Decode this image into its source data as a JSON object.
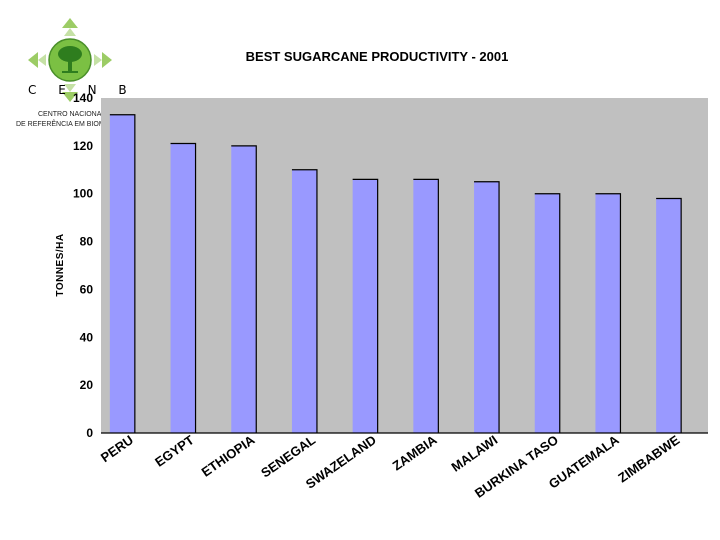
{
  "logo": {
    "name": "C E N B I O",
    "subtitle_line1": "CENTRO NACIONAL",
    "subtitle_line2": "DE REFERÊNCIA EM BIOMASSA",
    "leaf_color": "#7bc043",
    "tree_color": "#2e7d1e",
    "arrow_color": "#9ccc65"
  },
  "chart_data": {
    "type": "bar",
    "title": "BEST SUGARCANE PRODUCTIVITY - 2001",
    "xlabel": "",
    "ylabel": "TONNES/HA",
    "ylim": [
      0,
      140
    ],
    "yticks": [
      0,
      20,
      40,
      60,
      80,
      100,
      120,
      140
    ],
    "categories": [
      "PERU",
      "EGYPT",
      "ETHIOPIA",
      "SENEGAL",
      "SWAZELAND",
      "ZAMBIA",
      "MALAWI",
      "BURKINA TASO",
      "GUATEMALA",
      "ZIMBABWE"
    ],
    "values": [
      133,
      121,
      120,
      110,
      106,
      106,
      105,
      100,
      100,
      98
    ],
    "bar_color": "#9999ff",
    "plot_bg": "#c0c0c0",
    "grid": false,
    "legend": "none"
  }
}
